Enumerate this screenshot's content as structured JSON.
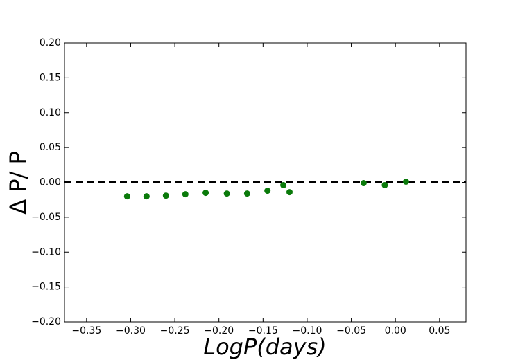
{
  "chart_data": {
    "type": "scatter",
    "xlabel": "LogP(days)",
    "ylabel": "Δ P/ P",
    "x": [
      -0.304,
      -0.282,
      -0.26,
      -0.238,
      -0.215,
      -0.191,
      -0.168,
      -0.145,
      -0.127,
      -0.12,
      -0.036,
      -0.012,
      0.012
    ],
    "values": [
      -0.02,
      -0.02,
      -0.019,
      -0.017,
      -0.015,
      -0.016,
      -0.016,
      -0.012,
      -0.004,
      -0.014,
      -0.001,
      -0.004,
      0.001
    ],
    "color": "#0a7a0a",
    "hline": 0,
    "xlim": [
      -0.375,
      0.08
    ],
    "xticks": [
      {
        "value": -0.35,
        "label": "−0.35"
      },
      {
        "value": -0.3,
        "label": "−0.30"
      },
      {
        "value": -0.25,
        "label": "−0.25"
      },
      {
        "value": -0.2,
        "label": "−0.20"
      },
      {
        "value": -0.15,
        "label": "−0.15"
      },
      {
        "value": -0.1,
        "label": "−0.10"
      },
      {
        "value": -0.05,
        "label": "−0.05"
      },
      {
        "value": 0,
        "label": "0.00"
      },
      {
        "value": 0.05,
        "label": "0.05"
      }
    ],
    "ylim": [
      -0.2,
      0.2
    ],
    "yticks": [
      {
        "value": -0.2,
        "label": "−0.20"
      },
      {
        "value": -0.15,
        "label": "−0.15"
      },
      {
        "value": -0.1,
        "label": "−0.10"
      },
      {
        "value": -0.05,
        "label": "−0.05"
      },
      {
        "value": 0,
        "label": "0.00"
      },
      {
        "value": 0.05,
        "label": "0.05"
      },
      {
        "value": 0.1,
        "label": "0.10"
      },
      {
        "value": 0.15,
        "label": "0.15"
      },
      {
        "value": 0.2,
        "label": "0.20"
      }
    ]
  }
}
